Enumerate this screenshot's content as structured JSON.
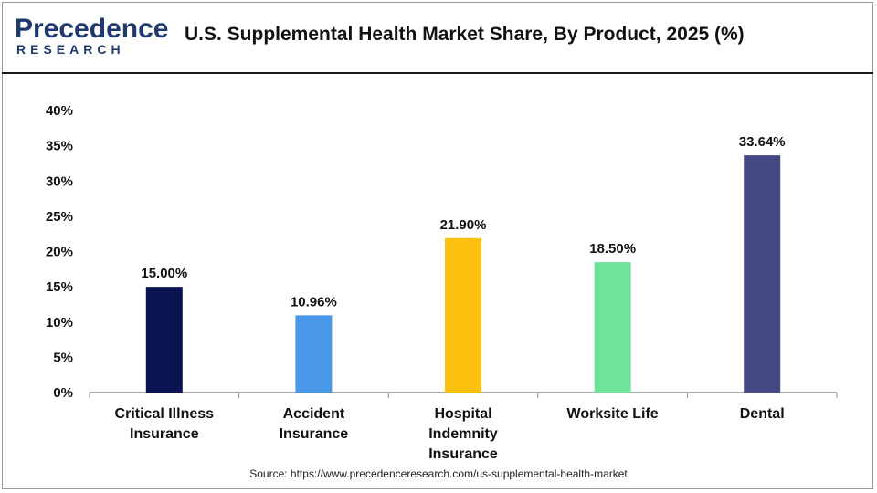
{
  "header": {
    "logo_top": "Precedence",
    "logo_bottom": "RESEARCH",
    "title": "U.S. Supplemental Health Market Share, By Product, 2025 (%)"
  },
  "source": "Source: https://www.precedenceresearch.com/us-supplemental-health-market",
  "chart_data": {
    "type": "bar",
    "title": "U.S. Supplemental Health Market Share, By Product, 2025 (%)",
    "categories": [
      [
        "Critical Illness",
        "Insurance"
      ],
      [
        "Accident",
        "Insurance"
      ],
      [
        "Hospital",
        "Indemnity",
        "Insurance"
      ],
      [
        "Worksite Life"
      ],
      [
        "Dental"
      ]
    ],
    "values": [
      15.0,
      10.96,
      21.9,
      18.5,
      33.64
    ],
    "value_labels": [
      "15.00%",
      "10.96%",
      "21.90%",
      "18.50%",
      "33.64%"
    ],
    "colors": [
      "#0b1450",
      "#4a97e8",
      "#fcc10f",
      "#6ee39a",
      "#454a82"
    ],
    "yticks": [
      "0%",
      "5%",
      "10%",
      "15%",
      "20%",
      "25%",
      "30%",
      "35%",
      "40%"
    ],
    "ylim": [
      0,
      40
    ],
    "grid": false,
    "xlabel": "",
    "ylabel": ""
  }
}
